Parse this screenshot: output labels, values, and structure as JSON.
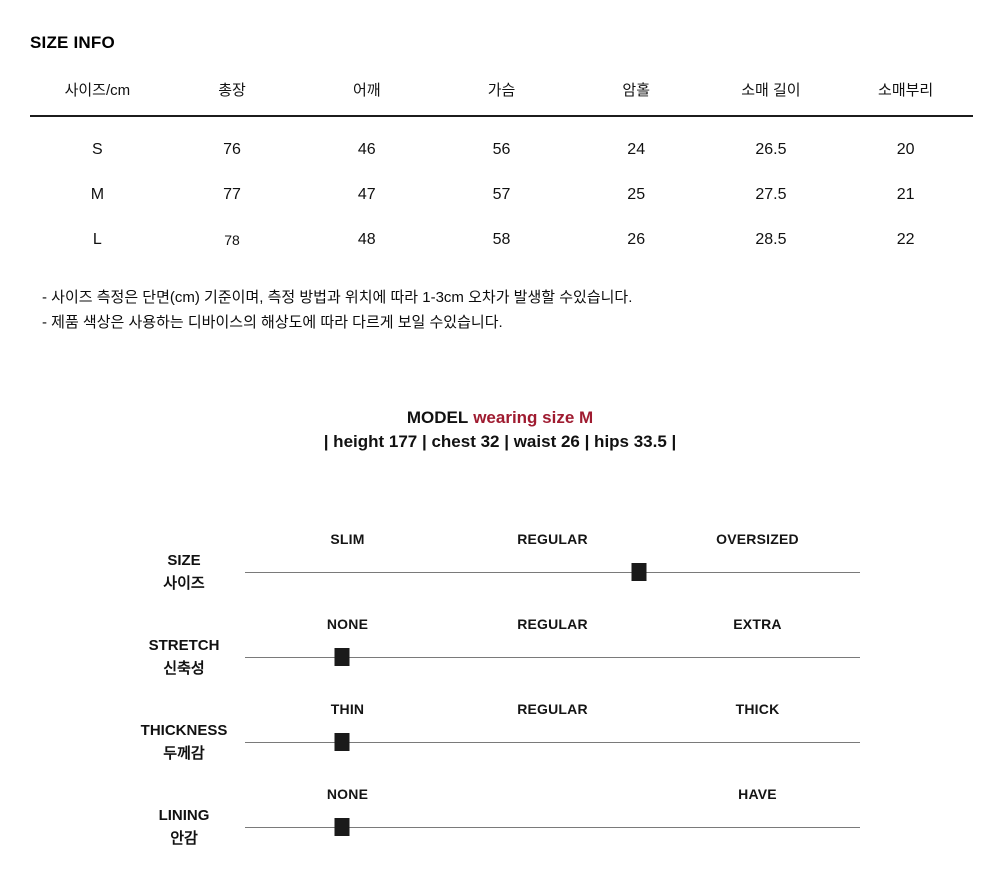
{
  "page": {
    "title": "SIZE INFO",
    "background_color": "#ffffff",
    "text_color": "#111111",
    "accent_color": "#9f1b30"
  },
  "size_table": {
    "headers": [
      "사이즈/cm",
      "총장",
      "어깨",
      "가슴",
      "암홀",
      "소매 길이",
      "소매부리"
    ],
    "rows": [
      [
        "S",
        "76",
        "46",
        "56",
        "24",
        "26.5",
        "20"
      ],
      [
        "M",
        "77",
        "47",
        "57",
        "25",
        "27.5",
        "21"
      ],
      [
        "L",
        "78",
        "48",
        "58",
        "26",
        "28.5",
        "22"
      ]
    ]
  },
  "notes": [
    "- 사이즈 측정은 단면(cm) 기준이며, 측정 방법과 위치에 따라 1-3cm 오차가 발생할 수있습니다.",
    "- 제품 색상은 사용하는 디바이스의 해상도에 따라 다르게 보일 수있습니다."
  ],
  "model": {
    "title_prefix": "MODEL",
    "title_highlight": "wearing size M",
    "measurements": "| height 177 | chest 32 |  waist 26  | hips 33.5 |"
  },
  "attributes": [
    {
      "label_en": "SIZE",
      "label_ko": "사이즈",
      "options": [
        "SLIM",
        "REGULAR",
        "OVERSIZED"
      ],
      "selected": "between REGULAR and OVERSIZED",
      "marker_pct": 64
    },
    {
      "label_en": "STRETCH",
      "label_ko": "신축성",
      "options": [
        "NONE",
        "REGULAR",
        "EXTRA"
      ],
      "selected": "NONE",
      "marker_pct": 15.8
    },
    {
      "label_en": "THICKNESS",
      "label_ko": "두께감",
      "options": [
        "THIN",
        "REGULAR",
        "THICK"
      ],
      "selected": "THIN",
      "marker_pct": 15.8
    },
    {
      "label_en": "LINING",
      "label_ko": "안감",
      "options": [
        "NONE",
        "",
        "HAVE"
      ],
      "selected": "NONE",
      "marker_pct": 15.8
    }
  ]
}
